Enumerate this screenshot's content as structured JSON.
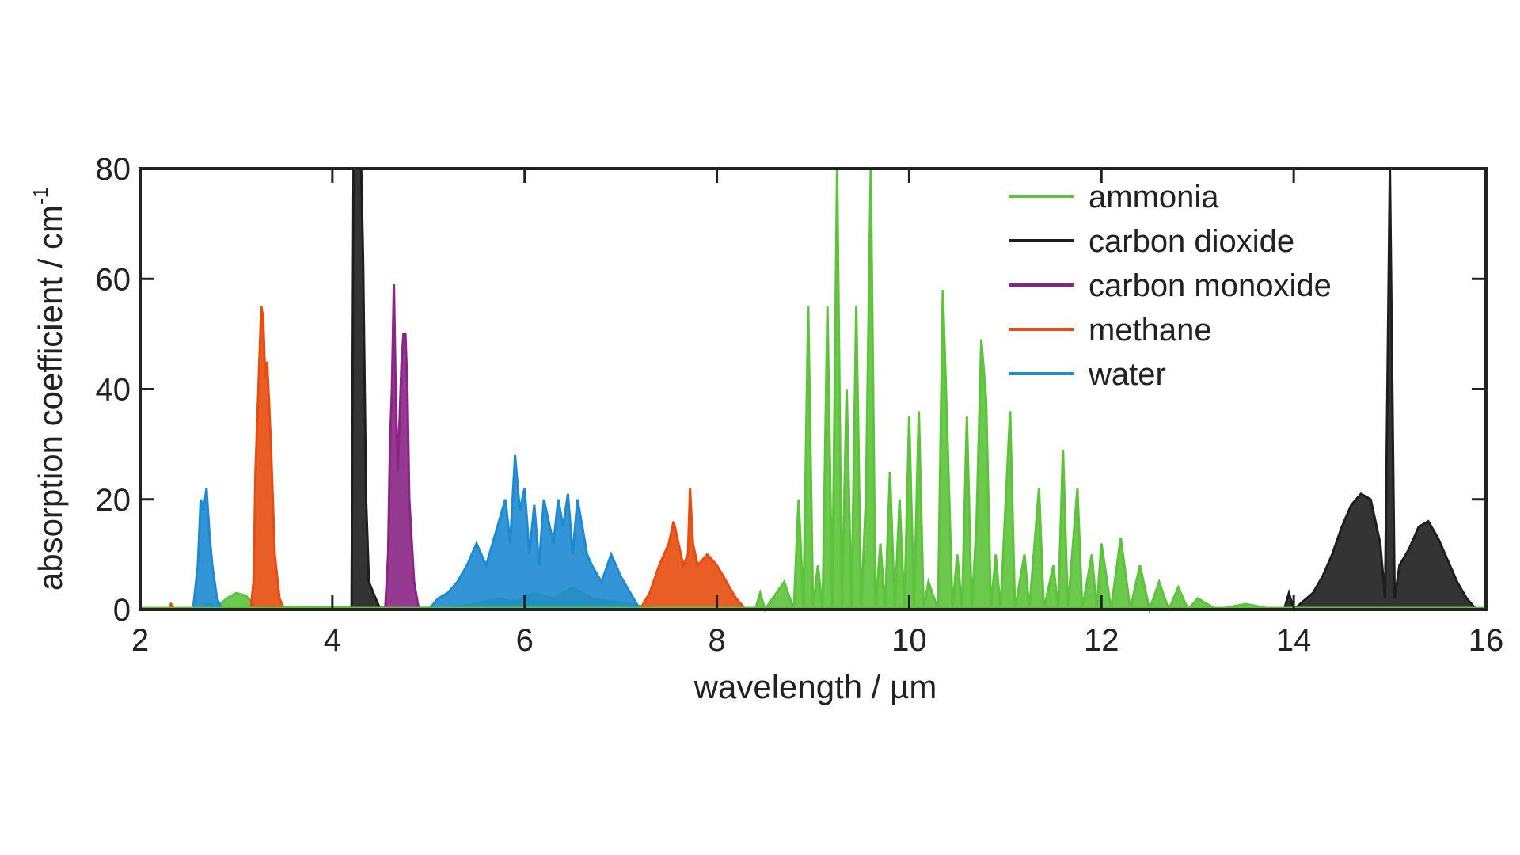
{
  "chart_data": {
    "type": "line",
    "title": "",
    "xlabel": "wavelength / µm",
    "ylabel": "absorption coefficient / cm",
    "ylabel_superscript": "-1",
    "xlim": [
      2,
      16
    ],
    "ylim": [
      0,
      80
    ],
    "xticks": [
      "2",
      "4",
      "6",
      "8",
      "10",
      "12",
      "14",
      "16"
    ],
    "yticks": [
      "0",
      "20",
      "40",
      "60",
      "80"
    ],
    "grid": false,
    "legend_position": "top-right",
    "series": [
      {
        "name": "ammonia",
        "color": "#5cc33a",
        "points": [
          [
            2.6,
            0
          ],
          [
            2.7,
            1
          ],
          [
            2.8,
            0.5
          ],
          [
            2.9,
            2
          ],
          [
            3.0,
            3
          ],
          [
            3.1,
            2.5
          ],
          [
            3.2,
            0.5
          ],
          [
            5.2,
            0.3
          ],
          [
            5.5,
            1
          ],
          [
            5.7,
            2
          ],
          [
            5.9,
            1.5
          ],
          [
            6.1,
            3
          ],
          [
            6.3,
            2
          ],
          [
            6.5,
            4
          ],
          [
            6.7,
            2
          ],
          [
            6.9,
            1.5
          ],
          [
            7.1,
            1
          ],
          [
            7.3,
            0.3
          ],
          [
            8.4,
            0
          ],
          [
            8.45,
            3
          ],
          [
            8.5,
            0
          ],
          [
            8.7,
            5
          ],
          [
            8.8,
            0
          ],
          [
            8.85,
            20
          ],
          [
            8.9,
            0
          ],
          [
            8.95,
            55
          ],
          [
            9.0,
            0
          ],
          [
            9.05,
            8
          ],
          [
            9.1,
            0
          ],
          [
            9.15,
            55
          ],
          [
            9.2,
            0
          ],
          [
            9.25,
            80
          ],
          [
            9.3,
            0
          ],
          [
            9.35,
            40
          ],
          [
            9.4,
            0
          ],
          [
            9.45,
            55
          ],
          [
            9.5,
            0
          ],
          [
            9.55,
            20
          ],
          [
            9.6,
            80
          ],
          [
            9.65,
            0
          ],
          [
            9.7,
            12
          ],
          [
            9.75,
            0
          ],
          [
            9.8,
            25
          ],
          [
            9.85,
            0
          ],
          [
            9.9,
            20
          ],
          [
            9.95,
            0
          ],
          [
            10.0,
            35
          ],
          [
            10.05,
            0
          ],
          [
            10.1,
            36
          ],
          [
            10.15,
            0
          ],
          [
            10.2,
            5
          ],
          [
            10.3,
            0
          ],
          [
            10.35,
            58
          ],
          [
            10.4,
            30
          ],
          [
            10.45,
            0
          ],
          [
            10.5,
            10
          ],
          [
            10.55,
            0
          ],
          [
            10.6,
            35
          ],
          [
            10.65,
            0
          ],
          [
            10.7,
            15
          ],
          [
            10.75,
            49
          ],
          [
            10.8,
            38
          ],
          [
            10.85,
            0
          ],
          [
            10.9,
            10
          ],
          [
            10.95,
            0
          ],
          [
            11.05,
            36
          ],
          [
            11.1,
            0
          ],
          [
            11.2,
            10
          ],
          [
            11.25,
            0
          ],
          [
            11.35,
            22
          ],
          [
            11.4,
            0
          ],
          [
            11.5,
            8
          ],
          [
            11.55,
            0
          ],
          [
            11.6,
            29
          ],
          [
            11.65,
            0
          ],
          [
            11.75,
            22
          ],
          [
            11.8,
            0
          ],
          [
            11.9,
            10
          ],
          [
            11.95,
            0
          ],
          [
            12.0,
            12
          ],
          [
            12.1,
            0
          ],
          [
            12.2,
            13
          ],
          [
            12.3,
            0
          ],
          [
            12.4,
            8
          ],
          [
            12.5,
            0
          ],
          [
            12.6,
            5
          ],
          [
            12.7,
            0
          ],
          [
            12.8,
            4
          ],
          [
            12.9,
            0
          ],
          [
            13.0,
            2
          ],
          [
            13.2,
            0
          ],
          [
            13.5,
            1
          ],
          [
            13.8,
            0
          ]
        ]
      },
      {
        "name": "carbon dioxide",
        "color": "#1e1e1e",
        "points": [
          [
            4.2,
            0
          ],
          [
            4.22,
            80
          ],
          [
            4.26,
            80
          ],
          [
            4.3,
            80
          ],
          [
            4.32,
            63
          ],
          [
            4.35,
            20
          ],
          [
            4.38,
            5
          ],
          [
            4.45,
            2
          ],
          [
            4.5,
            0
          ],
          [
            13.9,
            0
          ],
          [
            13.95,
            3
          ],
          [
            14.0,
            0
          ],
          [
            14.2,
            3
          ],
          [
            14.3,
            6
          ],
          [
            14.4,
            10
          ],
          [
            14.5,
            15
          ],
          [
            14.6,
            19
          ],
          [
            14.7,
            21
          ],
          [
            14.8,
            20
          ],
          [
            14.9,
            12
          ],
          [
            14.95,
            2
          ],
          [
            15.0,
            80
          ],
          [
            15.05,
            2
          ],
          [
            15.1,
            8
          ],
          [
            15.2,
            11
          ],
          [
            15.3,
            15
          ],
          [
            15.4,
            16
          ],
          [
            15.5,
            13
          ],
          [
            15.6,
            9
          ],
          [
            15.7,
            5
          ],
          [
            15.8,
            2
          ],
          [
            15.9,
            0
          ]
        ]
      },
      {
        "name": "carbon monoxide",
        "color": "#8b2585",
        "points": [
          [
            4.55,
            0
          ],
          [
            4.58,
            10
          ],
          [
            4.6,
            30
          ],
          [
            4.62,
            40
          ],
          [
            4.64,
            59
          ],
          [
            4.66,
            38
          ],
          [
            4.68,
            25
          ],
          [
            4.7,
            35
          ],
          [
            4.72,
            45
          ],
          [
            4.74,
            50
          ],
          [
            4.76,
            50
          ],
          [
            4.78,
            40
          ],
          [
            4.8,
            20
          ],
          [
            4.85,
            5
          ],
          [
            4.9,
            0
          ]
        ]
      },
      {
        "name": "methane",
        "color": "#e74d10",
        "points": [
          [
            2.3,
            0
          ],
          [
            2.32,
            1
          ],
          [
            2.36,
            0
          ],
          [
            3.15,
            0
          ],
          [
            3.18,
            5
          ],
          [
            3.2,
            25
          ],
          [
            3.23,
            40
          ],
          [
            3.26,
            55
          ],
          [
            3.28,
            53
          ],
          [
            3.3,
            42
          ],
          [
            3.32,
            45
          ],
          [
            3.34,
            38
          ],
          [
            3.36,
            30
          ],
          [
            3.38,
            20
          ],
          [
            3.4,
            10
          ],
          [
            3.45,
            2
          ],
          [
            3.5,
            0
          ],
          [
            7.2,
            0
          ],
          [
            7.3,
            3
          ],
          [
            7.4,
            8
          ],
          [
            7.5,
            12
          ],
          [
            7.55,
            16
          ],
          [
            7.6,
            12
          ],
          [
            7.65,
            8
          ],
          [
            7.7,
            10
          ],
          [
            7.72,
            22
          ],
          [
            7.75,
            12
          ],
          [
            7.8,
            8
          ],
          [
            7.9,
            10
          ],
          [
            7.95,
            9
          ],
          [
            8.0,
            8
          ],
          [
            8.1,
            5
          ],
          [
            8.2,
            2
          ],
          [
            8.3,
            0
          ]
        ]
      },
      {
        "name": "water",
        "color": "#1e8ad2",
        "points": [
          [
            2.55,
            0
          ],
          [
            2.6,
            8
          ],
          [
            2.63,
            20
          ],
          [
            2.66,
            18
          ],
          [
            2.69,
            22
          ],
          [
            2.72,
            14
          ],
          [
            2.75,
            8
          ],
          [
            2.8,
            2
          ],
          [
            2.85,
            0
          ],
          [
            5.0,
            0
          ],
          [
            5.1,
            2
          ],
          [
            5.2,
            3
          ],
          [
            5.3,
            5
          ],
          [
            5.4,
            8
          ],
          [
            5.5,
            12
          ],
          [
            5.6,
            8
          ],
          [
            5.7,
            14
          ],
          [
            5.8,
            20
          ],
          [
            5.85,
            12
          ],
          [
            5.9,
            28
          ],
          [
            5.95,
            18
          ],
          [
            6.0,
            22
          ],
          [
            6.05,
            10
          ],
          [
            6.1,
            19
          ],
          [
            6.15,
            8
          ],
          [
            6.2,
            20
          ],
          [
            6.3,
            12
          ],
          [
            6.35,
            20
          ],
          [
            6.4,
            15
          ],
          [
            6.45,
            21
          ],
          [
            6.5,
            10
          ],
          [
            6.55,
            20
          ],
          [
            6.6,
            15
          ],
          [
            6.65,
            10
          ],
          [
            6.7,
            8
          ],
          [
            6.8,
            5
          ],
          [
            6.9,
            10
          ],
          [
            7.0,
            6
          ],
          [
            7.1,
            3
          ],
          [
            7.2,
            0
          ]
        ]
      }
    ]
  }
}
